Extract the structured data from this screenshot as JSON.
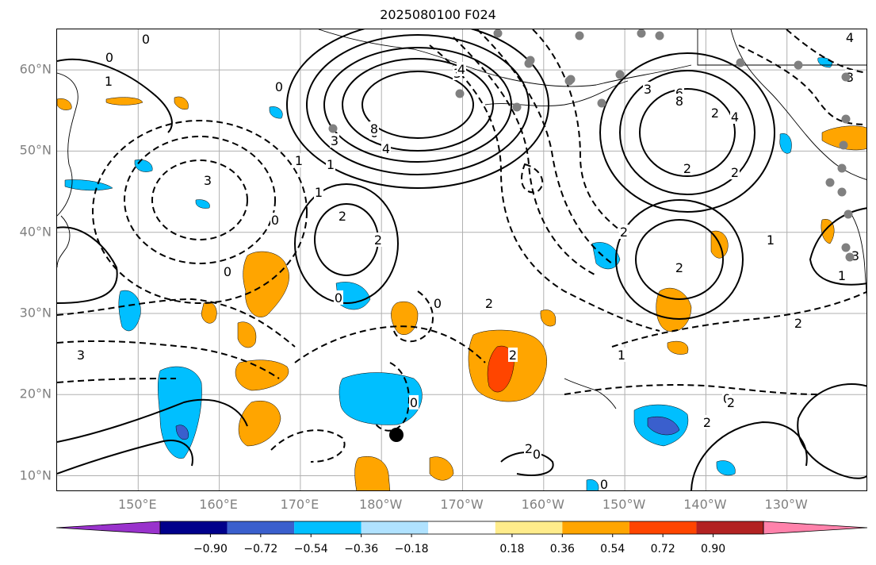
{
  "title": "2025080100 F024",
  "lat_labels": [
    "60°N",
    "50°N",
    "40°N",
    "30°N",
    "20°N",
    "10°N"
  ],
  "lat_values": [
    60,
    50,
    40,
    30,
    20,
    10
  ],
  "lon_labels": [
    "150°E",
    "160°E",
    "170°E",
    "180°W",
    "170°W",
    "160°W",
    "150°W",
    "140°W",
    "130°W"
  ],
  "lon_values": [
    150,
    160,
    170,
    180,
    190,
    200,
    210,
    220,
    230
  ],
  "map_extent": {
    "lon": [
      140,
      240
    ],
    "lat": [
      8,
      65
    ]
  },
  "contour_labels": [
    "0",
    "0",
    "0",
    "0",
    "0",
    "0",
    "0",
    "0",
    "0",
    "0",
    "0",
    "0",
    "1",
    "1",
    "1",
    "1",
    "1",
    "1",
    "1",
    "2",
    "2",
    "2",
    "2",
    "2",
    "2",
    "2",
    "2",
    "2",
    "2",
    "2",
    "2",
    "2",
    "3",
    "3",
    "3",
    "3",
    "3",
    "3",
    "3",
    "4",
    "4",
    "4",
    "4",
    "6",
    "6",
    "8",
    "8"
  ],
  "colorbar": {
    "ticks": [
      "−0.90",
      "−0.72",
      "−0.54",
      "−0.36",
      "−0.18",
      "0.18",
      "0.36",
      "0.54",
      "0.72",
      "0.90"
    ],
    "tick_values": [
      -0.9,
      -0.72,
      -0.54,
      -0.36,
      -0.18,
      0.18,
      0.36,
      0.54,
      0.72,
      0.9
    ],
    "colors": [
      "#9932cc",
      "#00008b",
      "#3a5fcd",
      "#00bfff",
      "#b0e2ff",
      "#ffffff",
      "#ffec8b",
      "#ffa500",
      "#ff4500",
      "#b22222",
      "#ff82ab"
    ]
  },
  "marker_colors": {
    "storm": "#000000",
    "station": "#808080",
    "fill_pos": "#ffa500",
    "fill_pos2": "#ff4500",
    "fill_neg": "#00bfff",
    "fill_neg2": "#3a5fcd"
  }
}
